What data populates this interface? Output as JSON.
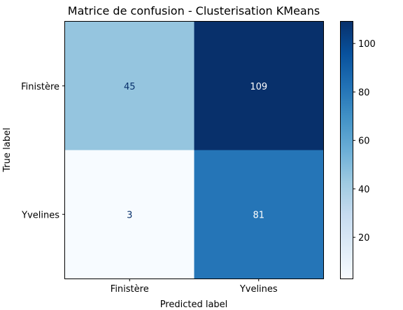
{
  "chart_data": {
    "type": "heatmap",
    "title": "Matrice de confusion - Clusterisation KMeans",
    "xlabel": "Predicted label",
    "ylabel": "True label",
    "x_categories": [
      "Finistère",
      "Yvelines"
    ],
    "y_categories": [
      "Finistère",
      "Yvelines"
    ],
    "values": [
      [
        45,
        109
      ],
      [
        3,
        81
      ]
    ],
    "colormap": "Blues",
    "colorbar": {
      "range": [
        3,
        109
      ],
      "ticks": [
        20,
        40,
        60,
        80,
        100
      ]
    },
    "colors": {
      "min": "#f7fbff",
      "max": "#08306b",
      "text_light": "#ffffff",
      "text_dark": "#08306b"
    }
  }
}
